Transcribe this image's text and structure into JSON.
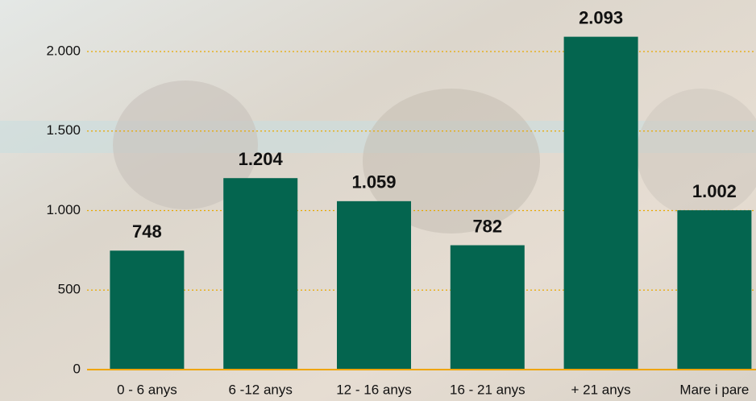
{
  "chart_data": {
    "type": "bar",
    "categories": [
      "0 - 6 anys",
      "6 -12 anys",
      "12 - 16 anys",
      "16 - 21 anys",
      "+ 21 anys",
      "Mare i pare"
    ],
    "values": [
      748,
      1204,
      1059,
      782,
      2093,
      1002
    ],
    "value_labels": [
      "748",
      "1.204",
      "1.059",
      "782",
      "2.093",
      "1.002"
    ],
    "color": "#04654f",
    "ylim": [
      0,
      2300
    ],
    "yticks": [
      0,
      500,
      {
        "value": 1000,
        "label": "1.000"
      },
      {
        "value": 1500,
        "label": "1.500"
      },
      {
        "value": 2000,
        "label": "2.000"
      }
    ],
    "grid": true
  }
}
